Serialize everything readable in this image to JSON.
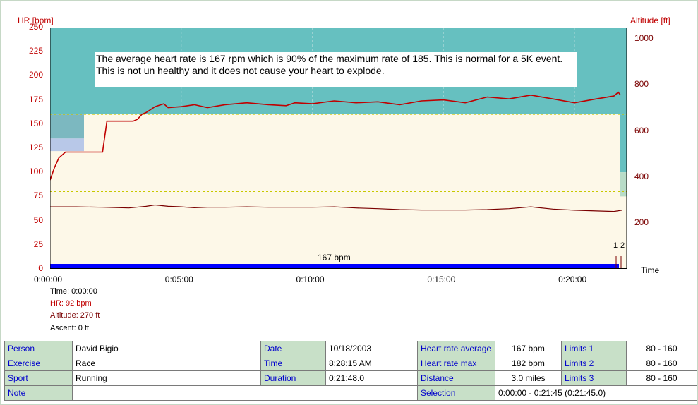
{
  "chart_data": {
    "type": "line",
    "left_axis": {
      "label": "HR [bpm]",
      "ticks": [
        "250",
        "225",
        "200",
        "175",
        "150",
        "125",
        "100",
        "75",
        "50",
        "25",
        "0"
      ],
      "range": [
        0,
        250
      ]
    },
    "right_axis": {
      "label": "Altitude [ft]",
      "ticks": [
        "1000",
        "800",
        "600",
        "400",
        "200"
      ],
      "range": [
        0,
        1050
      ]
    },
    "x_axis": {
      "label": "Time",
      "ticks": [
        "0:00:00",
        "0:05:00",
        "0:10:00",
        "0:15:00",
        "0:20:00"
      ],
      "range_seconds": [
        0,
        1308
      ]
    },
    "limit_lines": [
      80,
      160
    ],
    "series": [
      {
        "name": "HR",
        "color": "#c00000",
        "x": [
          0,
          10,
          20,
          35,
          60,
          90,
          120,
          130,
          150,
          170,
          190,
          200,
          210,
          220,
          240,
          260,
          270,
          300,
          330,
          360,
          400,
          450,
          500,
          540,
          560,
          600,
          650,
          700,
          750,
          800,
          850,
          900,
          950,
          1000,
          1050,
          1100,
          1150,
          1200,
          1250,
          1290,
          1300,
          1305
        ],
        "y": [
          92,
          105,
          115,
          121,
          121,
          121,
          121,
          153,
          153,
          153,
          153,
          155,
          160,
          162,
          168,
          171,
          167,
          168,
          170,
          167,
          170,
          172,
          170,
          169,
          172,
          171,
          174,
          172,
          173,
          170,
          174,
          175,
          172,
          178,
          176,
          180,
          176,
          172,
          176,
          179,
          183,
          180
        ]
      },
      {
        "name": "Altitude",
        "color": "#7a0000",
        "x": [
          0,
          60,
          120,
          180,
          220,
          240,
          270,
          300,
          330,
          360,
          400,
          450,
          500,
          550,
          600,
          650,
          700,
          750,
          800,
          850,
          900,
          950,
          1000,
          1050,
          1100,
          1150,
          1200,
          1250,
          1290,
          1308
        ],
        "y": [
          270,
          270,
          268,
          265,
          272,
          278,
          272,
          270,
          266,
          268,
          268,
          270,
          268,
          268,
          268,
          270,
          265,
          262,
          258,
          256,
          256,
          256,
          258,
          262,
          270,
          260,
          255,
          252,
          250,
          255
        ]
      }
    ],
    "avg_hr_label": "167 bpm",
    "lap_markers": [
      "1",
      "2"
    ]
  },
  "annotation_text": "The average heart rate is 167 rpm which is 90% of the maximum rate of 185. This is normal for a 5K event. This is not un healthy and it does not cause your heart to explode.",
  "readout": {
    "time": "Time: 0:00:00",
    "hr": "HR: 92 bpm",
    "altitude": "Altitude: 270 ft",
    "ascent": "Ascent: 0 ft"
  },
  "time_label": "Time",
  "info": {
    "person_label": "Person",
    "person": "David Bigio",
    "date_label": "Date",
    "date": "10/18/2003",
    "hr_avg_label": "Heart rate average",
    "hr_avg": "167 bpm",
    "limits1_label": "Limits 1",
    "limits1": "80 - 160",
    "exercise_label": "Exercise",
    "exercise": "Race",
    "time_label": "Time",
    "time": "8:28:15 AM",
    "hr_max_label": "Heart rate max",
    "hr_max": "182 bpm",
    "limits2_label": "Limits 2",
    "limits2": "80 - 160",
    "sport_label": "Sport",
    "sport": "Running",
    "duration_label": "Duration",
    "duration": "0:21:48.0",
    "distance_label": "Distance",
    "distance": "3.0 miles",
    "limits3_label": "Limits 3",
    "limits3": "80 - 160",
    "note_label": "Note",
    "note": "",
    "selection_label": "Selection",
    "selection": "0:00:00 - 0:21:45 (0:21:45.0)"
  },
  "colors": {
    "above_zone": "#66c0c0",
    "zone": "#fdf8e8",
    "hr_line": "#c00000",
    "alt_line": "#7a0000",
    "limit_line": "#c8c800",
    "bpm_bar": "#0000ff"
  }
}
